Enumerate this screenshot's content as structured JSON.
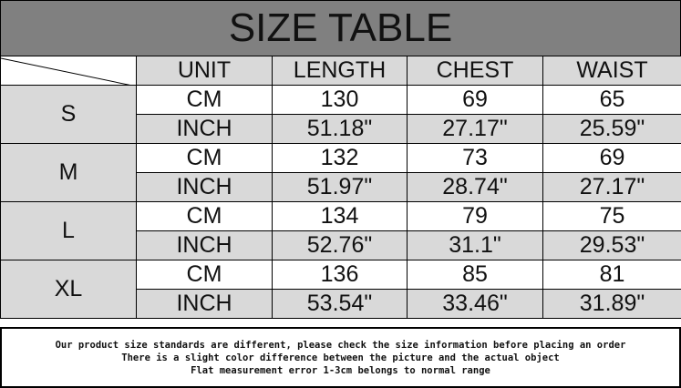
{
  "title": "SIZE TABLE",
  "columns": [
    "UNIT",
    "LENGTH",
    "CHEST",
    "WAIST"
  ],
  "rows": [
    {
      "size": "S",
      "cm": [
        "CM",
        "130",
        "69",
        "65"
      ],
      "inch": [
        "INCH",
        "51.18\"",
        "27.17\"",
        "25.59\""
      ]
    },
    {
      "size": "M",
      "cm": [
        "CM",
        "132",
        "73",
        "69"
      ],
      "inch": [
        "INCH",
        "51.97\"",
        "28.74\"",
        "27.17\""
      ]
    },
    {
      "size": "L",
      "cm": [
        "CM",
        "134",
        "79",
        "75"
      ],
      "inch": [
        "INCH",
        "52.76\"",
        "31.1\"",
        "29.53\""
      ]
    },
    {
      "size": "XL",
      "cm": [
        "CM",
        "136",
        "85",
        "81"
      ],
      "inch": [
        "INCH",
        "53.54\"",
        "33.46\"",
        "31.89\""
      ]
    }
  ],
  "notes": [
    "Our product size standards are different, please check the size information before placing an order",
    "There is a slight color difference between the picture and the actual object",
    "Flat measurement error 1-3cm belongs to normal range"
  ],
  "colors": {
    "title_bg": "#808080",
    "cell_gray": "#d9d9d9"
  }
}
